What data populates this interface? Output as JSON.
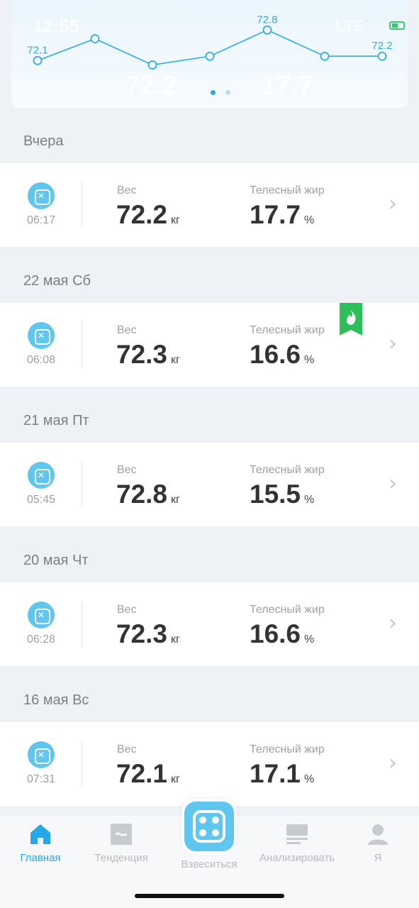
{
  "status": {
    "time": "12:55",
    "network": "LTE"
  },
  "chart_data": {
    "type": "line",
    "values": [
      72.1,
      72.6,
      72.0,
      72.2,
      72.8,
      72.2,
      72.2
    ],
    "point_labels": [
      "72.1",
      "",
      "",
      "",
      "72.8",
      "",
      "72.2"
    ],
    "ylim": [
      71.7,
      73.0
    ]
  },
  "header_ghost": {
    "weight": "72.2",
    "fat": "17.7"
  },
  "list": [
    {
      "date": "Вчера",
      "time": "06:17",
      "weight": "72.2",
      "fat": "17.7",
      "badge": false
    },
    {
      "date": "22 мая Сб",
      "time": "06:08",
      "weight": "72.3",
      "fat": "16.6",
      "badge": true
    },
    {
      "date": "21 мая Пт",
      "time": "05:45",
      "weight": "72.8",
      "fat": "15.5",
      "badge": false
    },
    {
      "date": "20 мая Чт",
      "time": "06:28",
      "weight": "72.3",
      "fat": "16.6",
      "badge": false
    },
    {
      "date": "16 мая Вс",
      "time": "07:31",
      "weight": "72.1",
      "fat": "17.1",
      "badge": false
    }
  ],
  "labels": {
    "weight": "Вес",
    "fat": "Телесный жир",
    "weight_unit": "кг",
    "fat_unit": "%"
  },
  "tabs": {
    "home": "Главная",
    "trend": "Тенденция",
    "weigh": "Взвеситься",
    "analyze": "Анализировать",
    "me": "Я"
  },
  "colors": {
    "accent": "#26a8e6",
    "line": "#27aee8",
    "badge": "#2fbf5a"
  }
}
